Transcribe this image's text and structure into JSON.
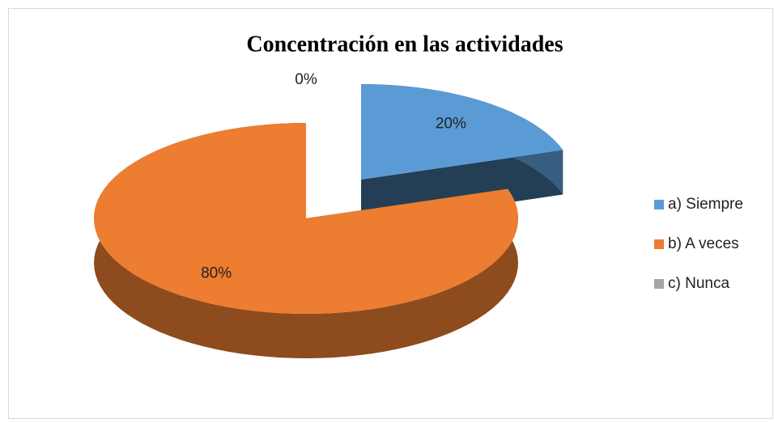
{
  "chart_data": {
    "type": "pie",
    "title": "Concentración en las actividades",
    "categories": [
      "a) Siempre",
      "b) A veces",
      "c) Nunca"
    ],
    "values": [
      20,
      80,
      0
    ],
    "value_labels": [
      "20%",
      "80%",
      "0%"
    ],
    "colors": [
      "#5b9bd5",
      "#ed7d31",
      "#a5a5a5"
    ],
    "legend": "right"
  }
}
